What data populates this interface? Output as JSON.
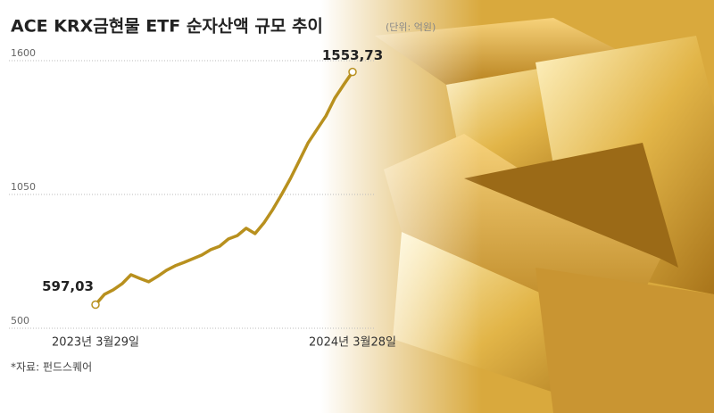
{
  "chart_data": {
    "type": "line",
    "title": "ACE KRX금현물 ETF 순자산액 규모 추이",
    "subtitle": "(단위: 억원)",
    "source": "*자료: 펀드스퀘어",
    "categories": [
      "2023년 3월29일",
      null,
      null,
      null,
      null,
      null,
      null,
      null,
      null,
      null,
      null,
      null,
      null,
      null,
      null,
      null,
      null,
      null,
      null,
      null,
      null,
      null,
      null,
      null,
      null,
      null,
      null,
      null,
      null,
      "2024년 3월28일"
    ],
    "series": [
      {
        "name": "순자산액",
        "color": "#b8901e",
        "values": [
          597.03,
          639,
          658,
          683,
          720,
          705,
          691,
          713,
          738,
          757,
          771,
          786,
          801,
          823,
          837,
          867,
          881,
          911,
          889,
          933,
          988,
          1050,
          1116,
          1189,
          1263,
          1318,
          1373,
          1446,
          1501,
          1553.73
        ],
        "value_labels": [
          "597,03",
          null,
          null,
          null,
          null,
          null,
          null,
          null,
          null,
          null,
          null,
          null,
          null,
          null,
          null,
          null,
          null,
          null,
          null,
          null,
          null,
          null,
          null,
          null,
          null,
          null,
          null,
          null,
          null,
          "1553,73"
        ]
      }
    ],
    "ylim": [
      500,
      1600
    ],
    "yticks": [
      500,
      1050,
      1600
    ],
    "grid": true
  }
}
